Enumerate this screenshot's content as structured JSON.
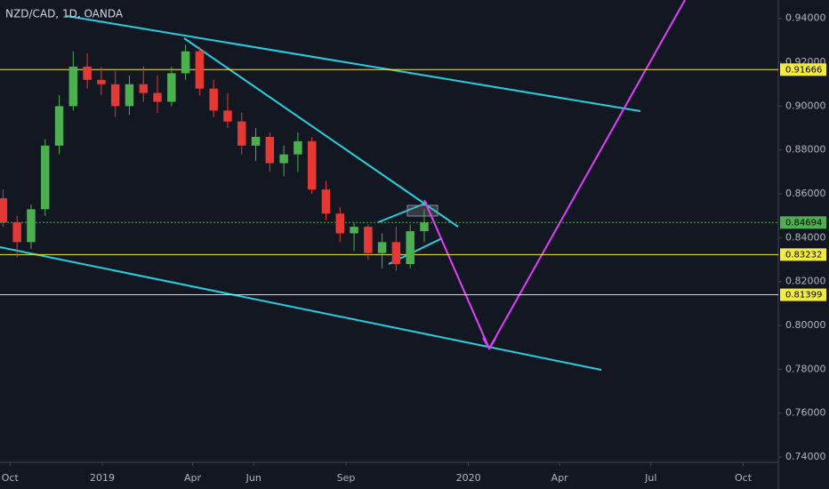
{
  "chart_data": {
    "type": "candlestick",
    "title": "NZD/CAD, 1D, OANDA",
    "x": [
      -7,
      7,
      21,
      35,
      49,
      63,
      77,
      91,
      105,
      119,
      133,
      147,
      161,
      175,
      189,
      203,
      217,
      231,
      245,
      259,
      273,
      287,
      301,
      315,
      329,
      343,
      357,
      371,
      385,
      399,
      413
    ],
    "open": [
      0.858,
      0.847,
      0.838,
      0.853,
      0.882,
      0.9,
      0.918,
      0.912,
      0.91,
      0.9,
      0.91,
      0.906,
      0.902,
      0.915,
      0.925,
      0.908,
      0.898,
      0.893,
      0.882,
      0.886,
      0.874,
      0.878,
      0.884,
      0.862,
      0.851,
      0.842,
      0.845,
      0.833,
      0.838,
      0.828,
      0.843
    ],
    "high": [
      0.862,
      0.85,
      0.855,
      0.885,
      0.905,
      0.925,
      0.924,
      0.918,
      0.916,
      0.914,
      0.918,
      0.914,
      0.918,
      0.928,
      0.927,
      0.912,
      0.906,
      0.897,
      0.89,
      0.888,
      0.882,
      0.888,
      0.886,
      0.866,
      0.854,
      0.847,
      0.846,
      0.842,
      0.845,
      0.846,
      0.853
    ],
    "low": [
      0.845,
      0.831,
      0.835,
      0.85,
      0.878,
      0.898,
      0.908,
      0.905,
      0.895,
      0.896,
      0.902,
      0.897,
      0.9,
      0.912,
      0.905,
      0.895,
      0.89,
      0.878,
      0.875,
      0.87,
      0.868,
      0.87,
      0.86,
      0.848,
      0.838,
      0.834,
      0.83,
      0.826,
      0.825,
      0.826,
      0.838
    ],
    "close": [
      0.847,
      0.838,
      0.853,
      0.882,
      0.9,
      0.918,
      0.912,
      0.91,
      0.9,
      0.91,
      0.906,
      0.902,
      0.915,
      0.925,
      0.908,
      0.898,
      0.893,
      0.882,
      0.886,
      0.874,
      0.878,
      0.884,
      0.862,
      0.851,
      0.842,
      0.845,
      0.833,
      0.838,
      0.828,
      0.843,
      0.847
    ],
    "up_color": "#4caf50",
    "down_color": "#e53935",
    "xlim": [
      -10,
      766
    ],
    "xticks": [
      {
        "value": 0,
        "label": "Oct"
      },
      {
        "value": 92,
        "label": "2019"
      },
      {
        "value": 182,
        "label": "Apr"
      },
      {
        "value": 243,
        "label": "Jun"
      },
      {
        "value": 335,
        "label": "Sep"
      },
      {
        "value": 457,
        "label": "2020"
      },
      {
        "value": 548,
        "label": "Apr"
      },
      {
        "value": 639,
        "label": "Jul"
      },
      {
        "value": 731,
        "label": "Oct"
      }
    ],
    "ylim": [
      0.7376,
      0.9484
    ],
    "yticks": [
      {
        "value": 0.94,
        "label": "0.94000"
      },
      {
        "value": 0.92,
        "label": "0.92000"
      },
      {
        "value": 0.9,
        "label": "0.90000"
      },
      {
        "value": 0.88,
        "label": "0.88000"
      },
      {
        "value": 0.86,
        "label": "0.86000"
      },
      {
        "value": 0.84,
        "label": "0.84000"
      },
      {
        "value": 0.82,
        "label": "0.82000"
      },
      {
        "value": 0.8,
        "label": "0.80000"
      },
      {
        "value": 0.78,
        "label": "0.78000"
      },
      {
        "value": 0.76,
        "label": "0.76000"
      },
      {
        "value": 0.74,
        "label": "0.74000"
      }
    ],
    "levels": [
      {
        "value": 0.91666,
        "color": "#f5eb3b"
      },
      {
        "value": 0.83232,
        "color": "#f5eb3b"
      },
      {
        "value": 0.81399,
        "color": "#f5eb3b"
      },
      {
        "value": 0.84694,
        "color": "#4caf50"
      }
    ]
  }
}
